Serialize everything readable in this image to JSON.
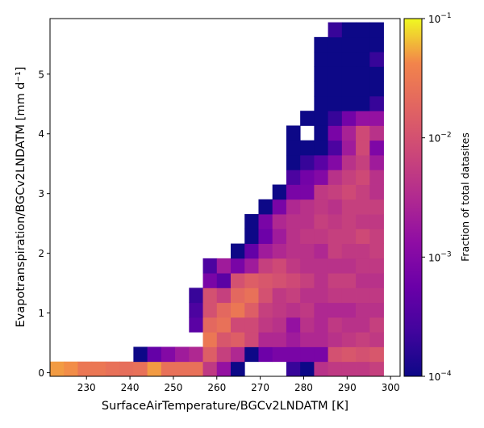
{
  "chart_data": {
    "type": "heatmap",
    "xlabel": "SurfaceAirTemperature/BGCv2LNDATM [K]",
    "ylabel": "Evapotranspiration/BGCv2LNDATM [mm d⁻¹]",
    "xlim": [
      221.6,
      302.2
    ],
    "ylim": [
      -0.06,
      5.93
    ],
    "x_ticks": [
      230,
      240,
      250,
      260,
      270,
      280,
      290,
      300
    ],
    "y_ticks": [
      0,
      1,
      2,
      3,
      4,
      5
    ],
    "x_tick_labels": [
      "230",
      "240",
      "250",
      "260",
      "270",
      "280",
      "290",
      "300"
    ],
    "y_tick_labels": [
      "0",
      "1",
      "2",
      "3",
      "4",
      "5"
    ],
    "bin_width_x": 3.2,
    "bin_height_y": 0.247,
    "x_bin_start": 221.6,
    "y_bin_start": -0.06,
    "colormap": "plasma",
    "color_scale": "log",
    "colorbar": {
      "label": "Fraction of total datasites",
      "range": [
        0.0001,
        0.1
      ],
      "tick_values": [
        0.0001,
        0.001,
        0.01,
        0.1
      ],
      "tick_base": [
        "10",
        "10",
        "10",
        "10"
      ],
      "tick_exp": [
        "−4",
        "−3",
        "−2",
        "−1"
      ]
    },
    "cells": [
      {
        "col": 0,
        "row": 0,
        "value": 0.05
      },
      {
        "col": 1,
        "row": 0,
        "value": 0.045
      },
      {
        "col": 2,
        "row": 0,
        "value": 0.03
      },
      {
        "col": 3,
        "row": 0,
        "value": 0.03
      },
      {
        "col": 4,
        "row": 0,
        "value": 0.025
      },
      {
        "col": 5,
        "row": 0,
        "value": 0.023
      },
      {
        "col": 6,
        "row": 0,
        "value": 0.025
      },
      {
        "col": 7,
        "row": 0,
        "value": 0.05
      },
      {
        "col": 8,
        "row": 0,
        "value": 0.025
      },
      {
        "col": 9,
        "row": 0,
        "value": 0.025
      },
      {
        "col": 10,
        "row": 0,
        "value": 0.025
      },
      {
        "col": 11,
        "row": 0,
        "value": 0.005
      },
      {
        "col": 12,
        "row": 0,
        "value": 0.0015
      },
      {
        "col": 13,
        "row": 0,
        "value": 0.0001
      },
      {
        "col": 17,
        "row": 0,
        "value": 0.0002
      },
      {
        "col": 18,
        "row": 0,
        "value": 0.0001
      },
      {
        "col": 19,
        "row": 0,
        "value": 0.004
      },
      {
        "col": 20,
        "row": 0,
        "value": 0.005
      },
      {
        "col": 21,
        "row": 0,
        "value": 0.005
      },
      {
        "col": 22,
        "row": 0,
        "value": 0.005
      },
      {
        "col": 23,
        "row": 0,
        "value": 0.006
      },
      {
        "col": 6,
        "row": 1,
        "value": 0.0001
      },
      {
        "col": 7,
        "row": 1,
        "value": 0.0005
      },
      {
        "col": 8,
        "row": 1,
        "value": 0.001
      },
      {
        "col": 9,
        "row": 1,
        "value": 0.002
      },
      {
        "col": 10,
        "row": 1,
        "value": 0.003
      },
      {
        "col": 11,
        "row": 1,
        "value": 0.015
      },
      {
        "col": 12,
        "row": 1,
        "value": 0.006
      },
      {
        "col": 13,
        "row": 1,
        "value": 0.003
      },
      {
        "col": 14,
        "row": 1,
        "value": 0.0001
      },
      {
        "col": 15,
        "row": 1,
        "value": 0.0006
      },
      {
        "col": 16,
        "row": 1,
        "value": 0.0008
      },
      {
        "col": 17,
        "row": 1,
        "value": 0.0008
      },
      {
        "col": 18,
        "row": 1,
        "value": 0.0008
      },
      {
        "col": 19,
        "row": 1,
        "value": 0.0008
      },
      {
        "col": 20,
        "row": 1,
        "value": 0.01
      },
      {
        "col": 21,
        "row": 1,
        "value": 0.012
      },
      {
        "col": 22,
        "row": 1,
        "value": 0.01
      },
      {
        "col": 23,
        "row": 1,
        "value": 0.012
      },
      {
        "col": 11,
        "row": 2,
        "value": 0.03
      },
      {
        "col": 12,
        "row": 2,
        "value": 0.012
      },
      {
        "col": 13,
        "row": 2,
        "value": 0.015
      },
      {
        "col": 14,
        "row": 2,
        "value": 0.008
      },
      {
        "col": 15,
        "row": 2,
        "value": 0.003
      },
      {
        "col": 16,
        "row": 2,
        "value": 0.003
      },
      {
        "col": 17,
        "row": 2,
        "value": 0.002
      },
      {
        "col": 18,
        "row": 2,
        "value": 0.003
      },
      {
        "col": 19,
        "row": 2,
        "value": 0.003
      },
      {
        "col": 20,
        "row": 2,
        "value": 0.004
      },
      {
        "col": 21,
        "row": 2,
        "value": 0.005
      },
      {
        "col": 22,
        "row": 2,
        "value": 0.006
      },
      {
        "col": 23,
        "row": 2,
        "value": 0.005
      },
      {
        "col": 10,
        "row": 3,
        "value": 0.0004
      },
      {
        "col": 11,
        "row": 3,
        "value": 0.02
      },
      {
        "col": 12,
        "row": 3,
        "value": 0.025
      },
      {
        "col": 13,
        "row": 3,
        "value": 0.008
      },
      {
        "col": 14,
        "row": 3,
        "value": 0.008
      },
      {
        "col": 15,
        "row": 3,
        "value": 0.005
      },
      {
        "col": 16,
        "row": 3,
        "value": 0.004
      },
      {
        "col": 17,
        "row": 3,
        "value": 0.0015
      },
      {
        "col": 18,
        "row": 3,
        "value": 0.004
      },
      {
        "col": 19,
        "row": 3,
        "value": 0.003
      },
      {
        "col": 20,
        "row": 3,
        "value": 0.005
      },
      {
        "col": 21,
        "row": 3,
        "value": 0.004
      },
      {
        "col": 22,
        "row": 3,
        "value": 0.004
      },
      {
        "col": 23,
        "row": 3,
        "value": 0.006
      },
      {
        "col": 10,
        "row": 4,
        "value": 0.0003
      },
      {
        "col": 11,
        "row": 4,
        "value": 0.01
      },
      {
        "col": 12,
        "row": 4,
        "value": 0.02
      },
      {
        "col": 13,
        "row": 4,
        "value": 0.03
      },
      {
        "col": 14,
        "row": 4,
        "value": 0.015
      },
      {
        "col": 15,
        "row": 4,
        "value": 0.006
      },
      {
        "col": 16,
        "row": 4,
        "value": 0.005
      },
      {
        "col": 17,
        "row": 4,
        "value": 0.004
      },
      {
        "col": 18,
        "row": 4,
        "value": 0.005
      },
      {
        "col": 19,
        "row": 4,
        "value": 0.003
      },
      {
        "col": 20,
        "row": 4,
        "value": 0.003
      },
      {
        "col": 21,
        "row": 4,
        "value": 0.003
      },
      {
        "col": 22,
        "row": 4,
        "value": 0.004
      },
      {
        "col": 23,
        "row": 4,
        "value": 0.004
      },
      {
        "col": 10,
        "row": 5,
        "value": 0.0002
      },
      {
        "col": 11,
        "row": 5,
        "value": 0.01
      },
      {
        "col": 12,
        "row": 5,
        "value": 0.006
      },
      {
        "col": 13,
        "row": 5,
        "value": 0.02
      },
      {
        "col": 14,
        "row": 5,
        "value": 0.025
      },
      {
        "col": 15,
        "row": 5,
        "value": 0.01
      },
      {
        "col": 16,
        "row": 5,
        "value": 0.005
      },
      {
        "col": 17,
        "row": 5,
        "value": 0.006
      },
      {
        "col": 18,
        "row": 5,
        "value": 0.004
      },
      {
        "col": 19,
        "row": 5,
        "value": 0.004
      },
      {
        "col": 20,
        "row": 5,
        "value": 0.005
      },
      {
        "col": 21,
        "row": 5,
        "value": 0.005
      },
      {
        "col": 22,
        "row": 5,
        "value": 0.005
      },
      {
        "col": 23,
        "row": 5,
        "value": 0.005
      },
      {
        "col": 11,
        "row": 6,
        "value": 0.0008
      },
      {
        "col": 12,
        "row": 6,
        "value": 0.0004
      },
      {
        "col": 13,
        "row": 6,
        "value": 0.01
      },
      {
        "col": 14,
        "row": 6,
        "value": 0.015
      },
      {
        "col": 15,
        "row": 6,
        "value": 0.012
      },
      {
        "col": 16,
        "row": 6,
        "value": 0.01
      },
      {
        "col": 17,
        "row": 6,
        "value": 0.008
      },
      {
        "col": 18,
        "row": 6,
        "value": 0.006
      },
      {
        "col": 19,
        "row": 6,
        "value": 0.004
      },
      {
        "col": 20,
        "row": 6,
        "value": 0.006
      },
      {
        "col": 21,
        "row": 6,
        "value": 0.006
      },
      {
        "col": 22,
        "row": 6,
        "value": 0.004
      },
      {
        "col": 23,
        "row": 6,
        "value": 0.004
      },
      {
        "col": 11,
        "row": 7,
        "value": 0.0003
      },
      {
        "col": 12,
        "row": 7,
        "value": 0.002
      },
      {
        "col": 13,
        "row": 7,
        "value": 0.0008
      },
      {
        "col": 14,
        "row": 7,
        "value": 0.002
      },
      {
        "col": 15,
        "row": 7,
        "value": 0.006
      },
      {
        "col": 16,
        "row": 7,
        "value": 0.008
      },
      {
        "col": 17,
        "row": 7,
        "value": 0.005
      },
      {
        "col": 18,
        "row": 7,
        "value": 0.004
      },
      {
        "col": 19,
        "row": 7,
        "value": 0.004
      },
      {
        "col": 20,
        "row": 7,
        "value": 0.004
      },
      {
        "col": 21,
        "row": 7,
        "value": 0.004
      },
      {
        "col": 22,
        "row": 7,
        "value": 0.005
      },
      {
        "col": 23,
        "row": 7,
        "value": 0.005
      },
      {
        "col": 13,
        "row": 8,
        "value": 0.0001
      },
      {
        "col": 14,
        "row": 8,
        "value": 0.0005
      },
      {
        "col": 15,
        "row": 8,
        "value": 0.002
      },
      {
        "col": 16,
        "row": 8,
        "value": 0.003
      },
      {
        "col": 17,
        "row": 8,
        "value": 0.004
      },
      {
        "col": 18,
        "row": 8,
        "value": 0.004
      },
      {
        "col": 19,
        "row": 8,
        "value": 0.003
      },
      {
        "col": 20,
        "row": 8,
        "value": 0.006
      },
      {
        "col": 21,
        "row": 8,
        "value": 0.005
      },
      {
        "col": 22,
        "row": 8,
        "value": 0.005
      },
      {
        "col": 23,
        "row": 8,
        "value": 0.006
      },
      {
        "col": 14,
        "row": 9,
        "value": 0.0001
      },
      {
        "col": 15,
        "row": 9,
        "value": 0.0006
      },
      {
        "col": 16,
        "row": 9,
        "value": 0.002
      },
      {
        "col": 17,
        "row": 9,
        "value": 0.004
      },
      {
        "col": 18,
        "row": 9,
        "value": 0.005
      },
      {
        "col": 19,
        "row": 9,
        "value": 0.005
      },
      {
        "col": 20,
        "row": 9,
        "value": 0.006
      },
      {
        "col": 21,
        "row": 9,
        "value": 0.006
      },
      {
        "col": 22,
        "row": 9,
        "value": 0.008
      },
      {
        "col": 23,
        "row": 9,
        "value": 0.006
      },
      {
        "col": 14,
        "row": 10,
        "value": 0.0001
      },
      {
        "col": 15,
        "row": 10,
        "value": 0.0008
      },
      {
        "col": 16,
        "row": 10,
        "value": 0.003
      },
      {
        "col": 17,
        "row": 10,
        "value": 0.004
      },
      {
        "col": 18,
        "row": 10,
        "value": 0.004
      },
      {
        "col": 19,
        "row": 10,
        "value": 0.006
      },
      {
        "col": 20,
        "row": 10,
        "value": 0.005
      },
      {
        "col": 21,
        "row": 10,
        "value": 0.006
      },
      {
        "col": 22,
        "row": 10,
        "value": 0.005
      },
      {
        "col": 23,
        "row": 10,
        "value": 0.005
      },
      {
        "col": 15,
        "row": 11,
        "value": 0.0001
      },
      {
        "col": 16,
        "row": 11,
        "value": 0.0008
      },
      {
        "col": 17,
        "row": 11,
        "value": 0.003
      },
      {
        "col": 18,
        "row": 11,
        "value": 0.004
      },
      {
        "col": 19,
        "row": 11,
        "value": 0.005
      },
      {
        "col": 20,
        "row": 11,
        "value": 0.004
      },
      {
        "col": 21,
        "row": 11,
        "value": 0.006
      },
      {
        "col": 22,
        "row": 11,
        "value": 0.006
      },
      {
        "col": 23,
        "row": 11,
        "value": 0.006
      },
      {
        "col": 16,
        "row": 12,
        "value": 0.0001
      },
      {
        "col": 17,
        "row": 12,
        "value": 0.0008
      },
      {
        "col": 18,
        "row": 12,
        "value": 0.0008
      },
      {
        "col": 19,
        "row": 12,
        "value": 0.005
      },
      {
        "col": 20,
        "row": 12,
        "value": 0.006
      },
      {
        "col": 21,
        "row": 12,
        "value": 0.008
      },
      {
        "col": 22,
        "row": 12,
        "value": 0.006
      },
      {
        "col": 23,
        "row": 12,
        "value": 0.004
      },
      {
        "col": 17,
        "row": 13,
        "value": 0.0003
      },
      {
        "col": 18,
        "row": 13,
        "value": 0.0007
      },
      {
        "col": 19,
        "row": 13,
        "value": 0.001
      },
      {
        "col": 20,
        "row": 13,
        "value": 0.004
      },
      {
        "col": 21,
        "row": 13,
        "value": 0.006
      },
      {
        "col": 22,
        "row": 13,
        "value": 0.008
      },
      {
        "col": 23,
        "row": 13,
        "value": 0.004
      },
      {
        "col": 17,
        "row": 14,
        "value": 0.0001
      },
      {
        "col": 18,
        "row": 14,
        "value": 0.0002
      },
      {
        "col": 19,
        "row": 14,
        "value": 0.0004
      },
      {
        "col": 20,
        "row": 14,
        "value": 0.001
      },
      {
        "col": 21,
        "row": 14,
        "value": 0.004
      },
      {
        "col": 22,
        "row": 14,
        "value": 0.006
      },
      {
        "col": 23,
        "row": 14,
        "value": 0.002
      },
      {
        "col": 17,
        "row": 15,
        "value": 0.0001
      },
      {
        "col": 18,
        "row": 15,
        "value": 0.0001
      },
      {
        "col": 19,
        "row": 15,
        "value": 0.0001
      },
      {
        "col": 20,
        "row": 15,
        "value": 0.0003
      },
      {
        "col": 21,
        "row": 15,
        "value": 0.002
      },
      {
        "col": 22,
        "row": 15,
        "value": 0.008
      },
      {
        "col": 23,
        "row": 15,
        "value": 0.0009
      },
      {
        "col": 17,
        "row": 16,
        "value": 0.0001
      },
      {
        "col": 19,
        "row": 16,
        "value": 0.0001
      },
      {
        "col": 20,
        "row": 16,
        "value": 0.0008
      },
      {
        "col": 21,
        "row": 16,
        "value": 0.0025
      },
      {
        "col": 22,
        "row": 16,
        "value": 0.008
      },
      {
        "col": 23,
        "row": 16,
        "value": 0.004
      },
      {
        "col": 18,
        "row": 17,
        "value": 0.0001
      },
      {
        "col": 19,
        "row": 17,
        "value": 0.0001
      },
      {
        "col": 20,
        "row": 17,
        "value": 0.0002
      },
      {
        "col": 21,
        "row": 17,
        "value": 0.0007
      },
      {
        "col": 22,
        "row": 17,
        "value": 0.0015
      },
      {
        "col": 23,
        "row": 17,
        "value": 0.0015
      },
      {
        "col": 19,
        "row": 18,
        "value": 0.0001
      },
      {
        "col": 20,
        "row": 18,
        "value": 0.0001
      },
      {
        "col": 21,
        "row": 18,
        "value": 0.0001
      },
      {
        "col": 22,
        "row": 18,
        "value": 0.0001
      },
      {
        "col": 23,
        "row": 18,
        "value": 0.0002
      },
      {
        "col": 19,
        "row": 19,
        "value": 0.0001
      },
      {
        "col": 20,
        "row": 19,
        "value": 0.0001
      },
      {
        "col": 21,
        "row": 19,
        "value": 0.0001
      },
      {
        "col": 22,
        "row": 19,
        "value": 0.0001
      },
      {
        "col": 23,
        "row": 19,
        "value": 0.0001
      },
      {
        "col": 19,
        "row": 20,
        "value": 0.0001
      },
      {
        "col": 20,
        "row": 20,
        "value": 0.0001
      },
      {
        "col": 21,
        "row": 20,
        "value": 0.0001
      },
      {
        "col": 22,
        "row": 20,
        "value": 0.0001
      },
      {
        "col": 23,
        "row": 20,
        "value": 0.0001
      },
      {
        "col": 19,
        "row": 21,
        "value": 0.0001
      },
      {
        "col": 20,
        "row": 21,
        "value": 0.0001
      },
      {
        "col": 21,
        "row": 21,
        "value": 0.0001
      },
      {
        "col": 22,
        "row": 21,
        "value": 0.0001
      },
      {
        "col": 23,
        "row": 21,
        "value": 0.0002
      },
      {
        "col": 19,
        "row": 22,
        "value": 0.0001
      },
      {
        "col": 20,
        "row": 22,
        "value": 0.0001
      },
      {
        "col": 21,
        "row": 22,
        "value": 0.0001
      },
      {
        "col": 22,
        "row": 22,
        "value": 0.0001
      },
      {
        "col": 23,
        "row": 22,
        "value": 0.0001
      },
      {
        "col": 20,
        "row": 23,
        "value": 0.0002
      },
      {
        "col": 21,
        "row": 23,
        "value": 0.0001
      },
      {
        "col": 22,
        "row": 23,
        "value": 0.0001
      },
      {
        "col": 23,
        "row": 23,
        "value": 0.0001
      }
    ]
  }
}
